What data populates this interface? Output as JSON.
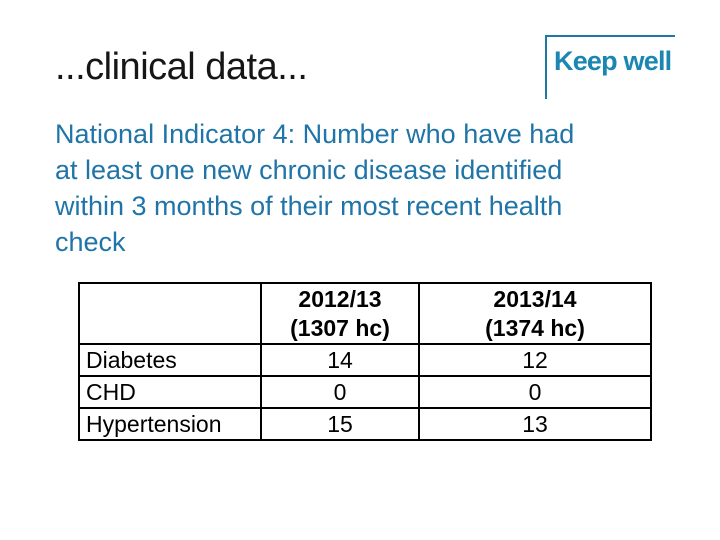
{
  "slide": {
    "title": "...clinical data...",
    "logo_text": "Keep well",
    "heading": "National Indicator 4: Number who have had\nat least one new chronic disease identified\nwithin 3 months of their most recent health\ncheck"
  },
  "table": {
    "columns": [
      "",
      "2012/13\n(1307 hc)",
      "2013/14\n(1374 hc)"
    ],
    "rows": [
      {
        "label": "Diabetes",
        "values": [
          "14",
          "12"
        ]
      },
      {
        "label": "CHD",
        "values": [
          "0",
          "0"
        ]
      },
      {
        "label": "Hypertension",
        "values": [
          "15",
          "13"
        ]
      }
    ]
  },
  "colors": {
    "heading_teal": "#1F74A8",
    "logo_teal": "#1B86B2",
    "logo_border": "#1D7BA3",
    "table_border": "#000000",
    "title_text": "#161616"
  }
}
